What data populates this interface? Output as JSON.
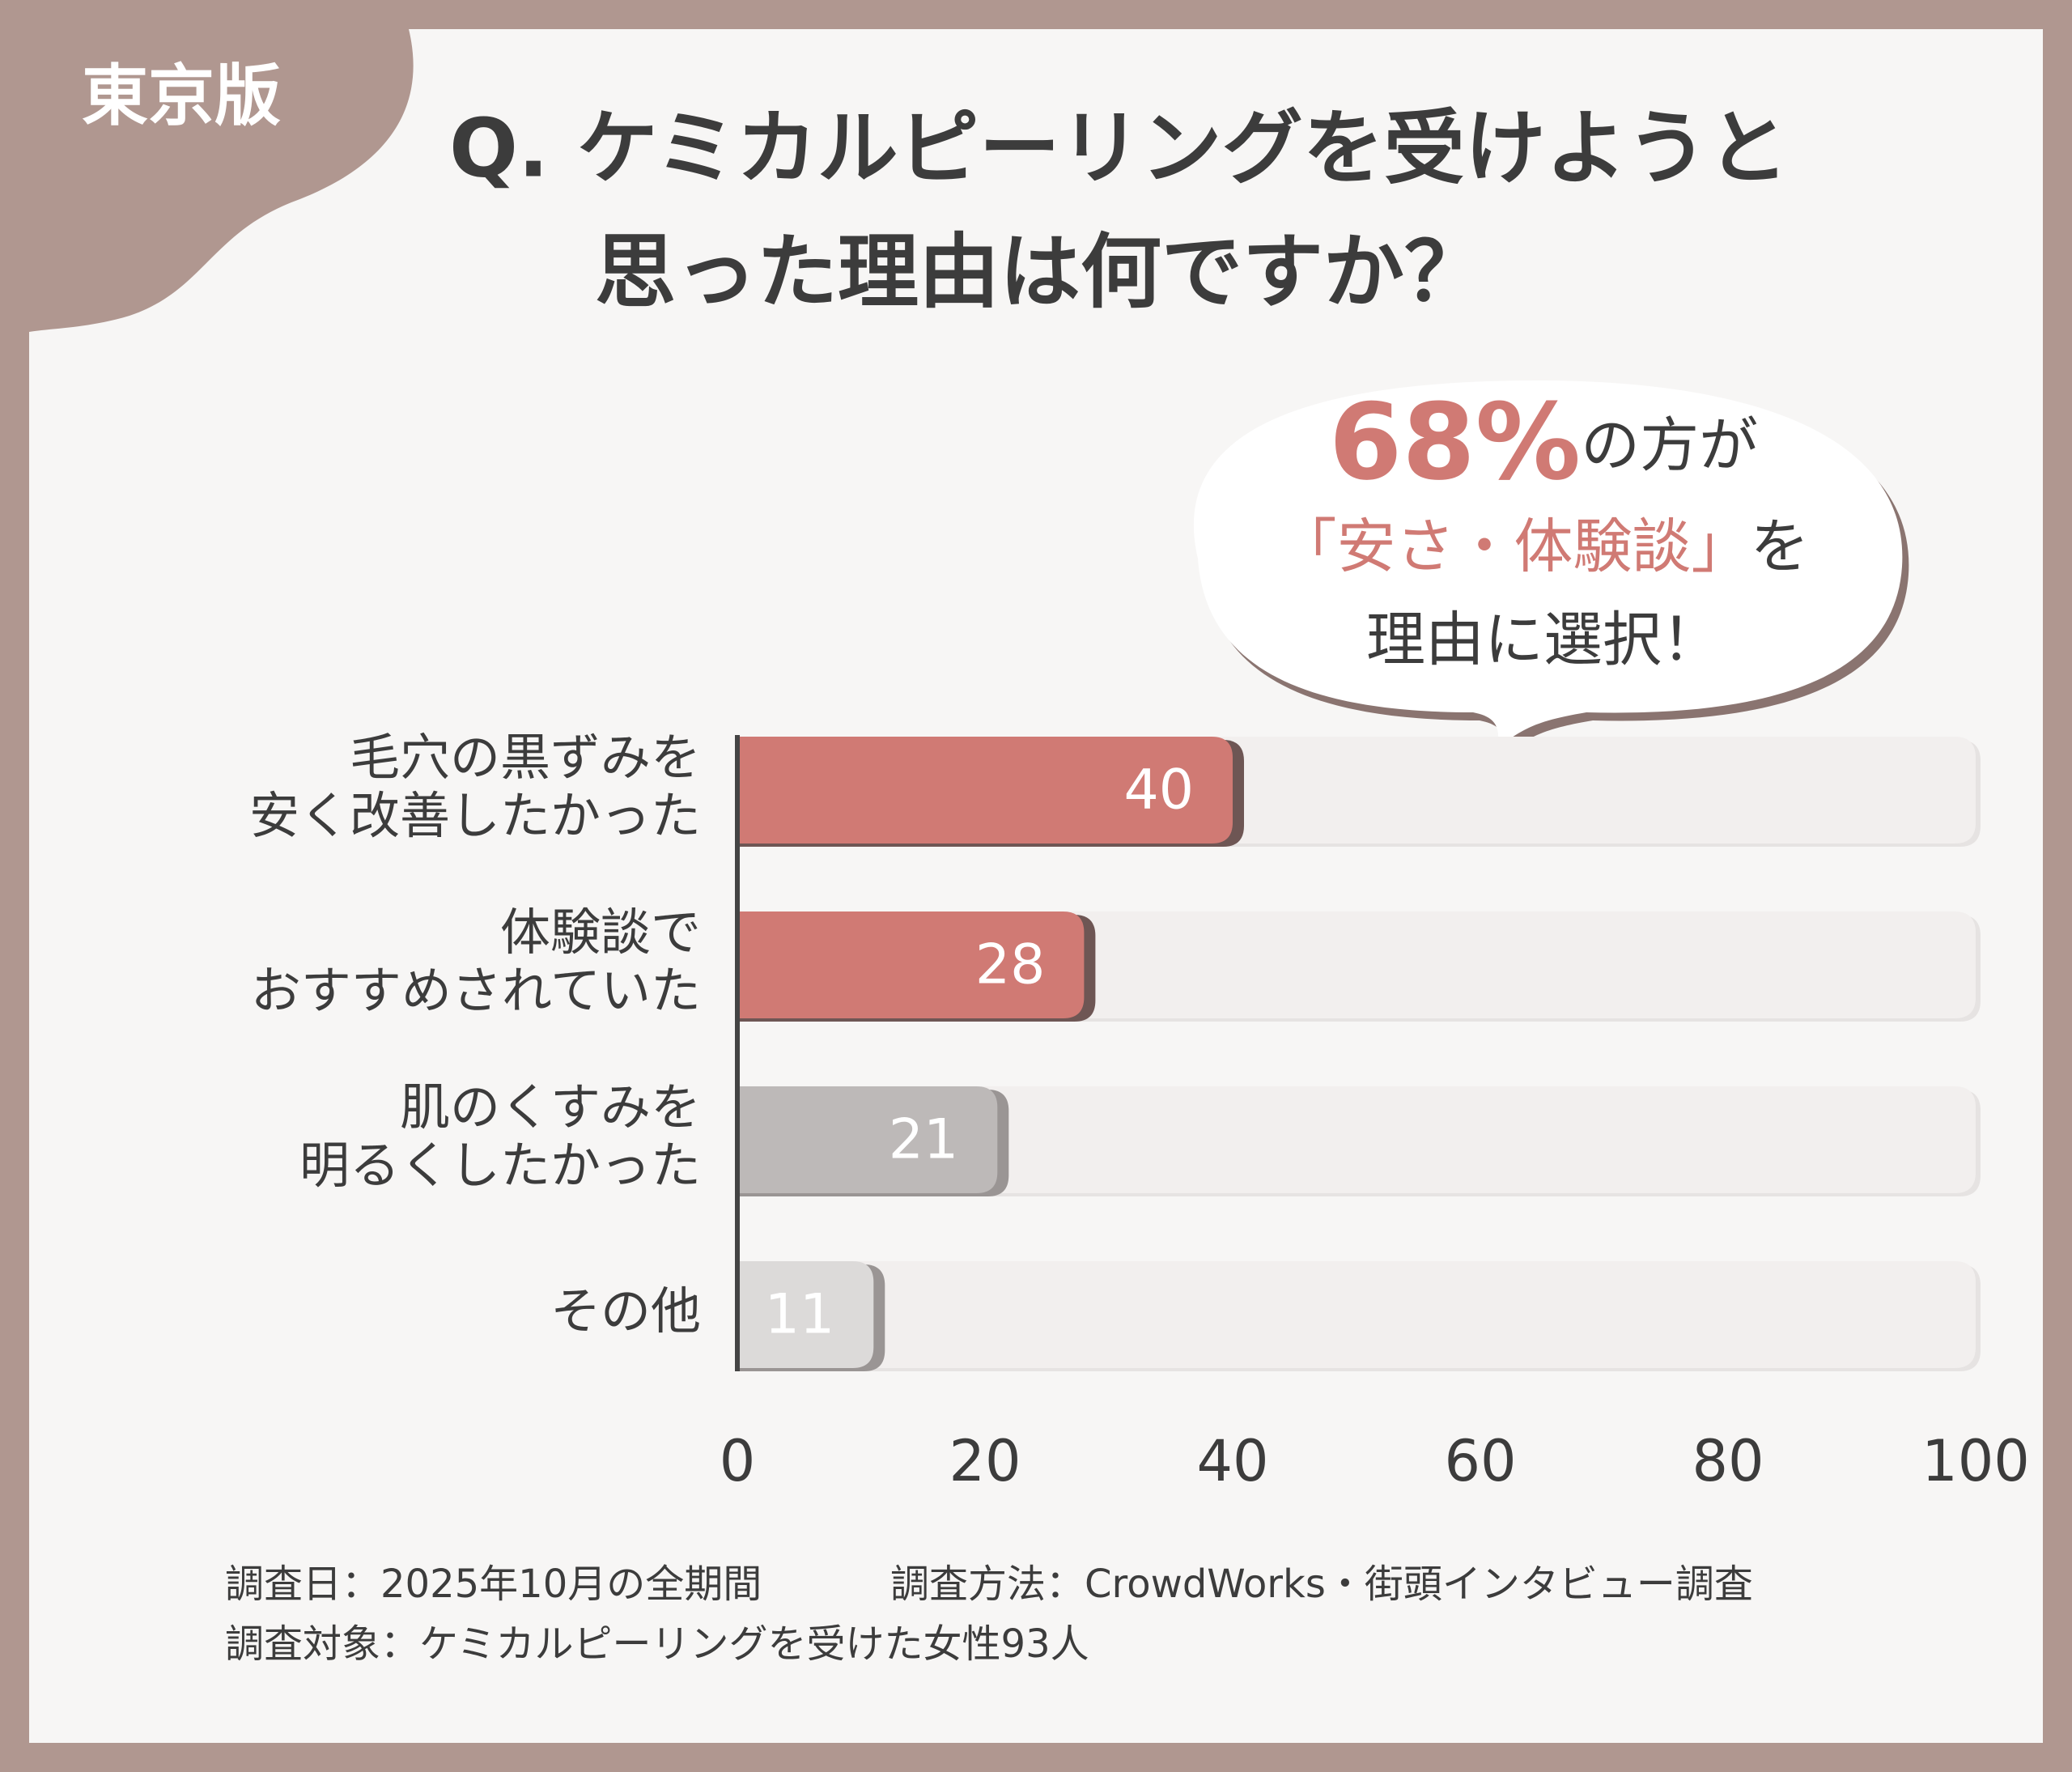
{
  "badge": "東京版",
  "chart_data": {
    "type": "hbar",
    "title": [
      "Q. ケミカルピーリングを受けようと",
      "思った理由は何ですか？"
    ],
    "categories": [
      "毛穴の黒ずみを\n安く改善したかった",
      "体験談で\nおすすめされていた",
      "肌のくすみを\n明るくしたかった",
      "その他"
    ],
    "values": [
      40,
      28,
      21,
      11
    ],
    "colors": [
      "#d07a74",
      "#d07a74",
      "#bdb9b8",
      "#dcdad9"
    ],
    "xlim": [
      0,
      100
    ],
    "xticks": [
      0,
      20,
      40,
      60,
      80,
      100
    ],
    "callout": [
      [
        {
          "text": "68%",
          "highlight": true
        },
        {
          "text": "の方が",
          "highlight": false
        }
      ],
      [
        {
          "text": "「安さ・体験談」",
          "highlight": true
        },
        {
          "text": "を",
          "highlight": false
        }
      ],
      [
        {
          "text": "理由に選択！",
          "highlight": false
        }
      ]
    ],
    "footnotes": [
      [
        "調査日：2025年10月の全期間",
        "調査方法：CrowdWorks・街頭インタビュー調査"
      ],
      [
        "調査対象：ケミカルピーリングを受けた女性93人"
      ]
    ]
  }
}
